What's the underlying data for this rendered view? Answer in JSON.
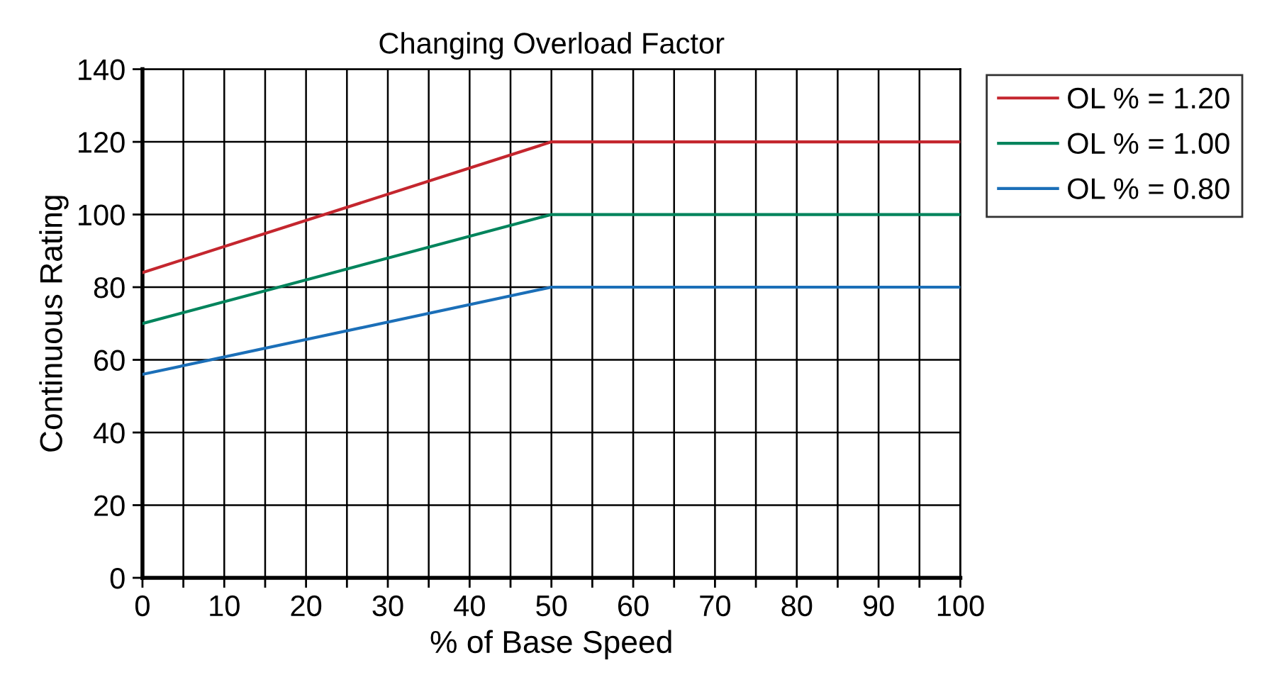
{
  "chart_data": {
    "type": "line",
    "title": "Changing Overload Factor",
    "xlabel": "% of Base Speed",
    "ylabel": "Continuous Rating",
    "x": [
      0,
      50,
      100
    ],
    "series": [
      {
        "name": "OL % = 1.20",
        "color": "#c4262e",
        "values": [
          84,
          120,
          120
        ]
      },
      {
        "name": "OL % = 1.00",
        "color": "#00845c",
        "values": [
          70,
          100,
          100
        ]
      },
      {
        "name": "OL % = 0.80",
        "color": "#1b6fb8",
        "values": [
          56,
          80,
          80
        ]
      }
    ],
    "xlim": [
      0,
      100
    ],
    "ylim": [
      0,
      140
    ],
    "xticks": [
      0,
      {
        "value": 5,
        "label": null
      },
      10,
      {
        "value": 15,
        "label": null
      },
      20,
      {
        "value": 25,
        "label": null
      },
      30,
      {
        "value": 35,
        "label": null
      },
      40,
      {
        "value": 45,
        "label": null
      },
      50,
      {
        "value": 55,
        "label": null
      },
      60,
      {
        "value": 65,
        "label": null
      },
      70,
      {
        "value": 75,
        "label": null
      },
      80,
      {
        "value": 85,
        "label": null
      },
      90,
      {
        "value": 95,
        "label": null
      },
      100
    ],
    "yticks": [
      0,
      20,
      40,
      60,
      80,
      100,
      120,
      140
    ],
    "grid": true,
    "legend": "top right",
    "marker": "none",
    "line_style": "solid"
  }
}
